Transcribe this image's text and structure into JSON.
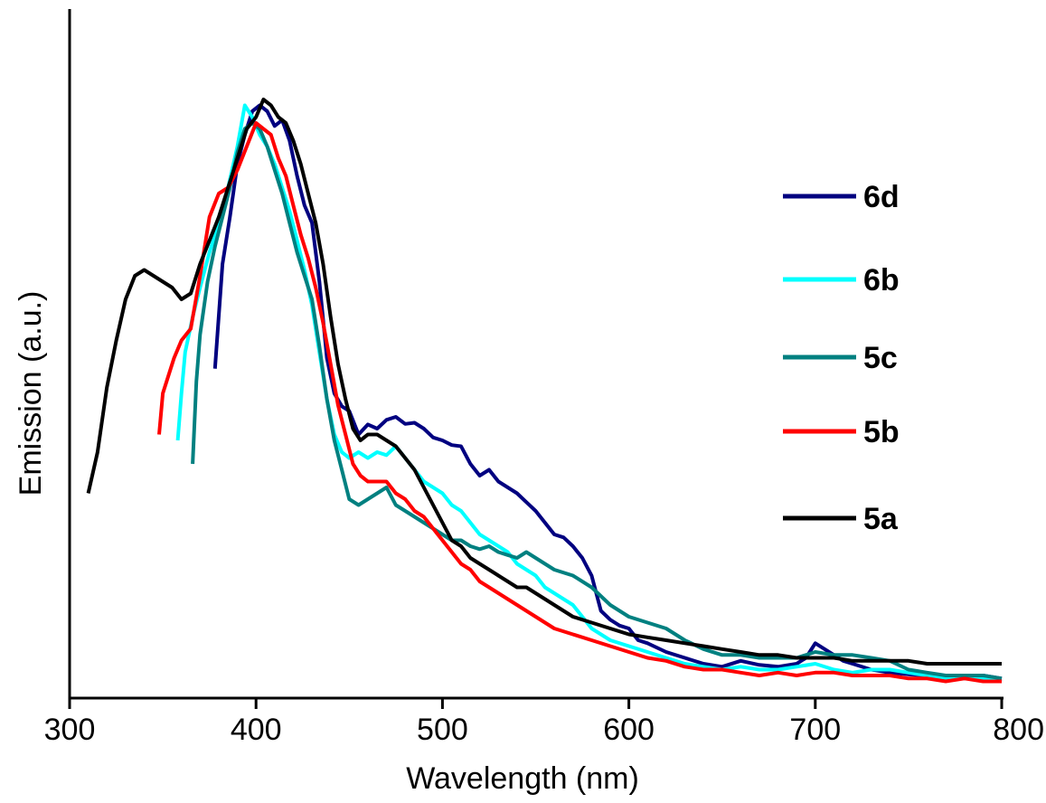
{
  "chart_data": {
    "type": "line",
    "title": "",
    "xlabel": "Wavelength (nm)",
    "ylabel": "Emission (a.u.)",
    "xlim": [
      300,
      800
    ],
    "ylim": [
      0,
      1
    ],
    "xticks": [
      "300",
      "400",
      "500",
      "600",
      "700",
      "800"
    ],
    "grid": false,
    "legend_position": "right",
    "series": [
      {
        "name": "6d",
        "color": "#000080",
        "x": [
          378,
          382,
          386,
          390,
          394,
          398,
          402,
          406,
          410,
          414,
          418,
          422,
          426,
          430,
          434,
          438,
          442,
          446,
          450,
          455,
          460,
          465,
          470,
          475,
          480,
          485,
          490,
          495,
          500,
          505,
          510,
          515,
          520,
          525,
          530,
          535,
          540,
          545,
          550,
          555,
          560,
          565,
          570,
          575,
          580,
          585,
          590,
          595,
          600,
          605,
          610,
          620,
          630,
          640,
          650,
          660,
          670,
          680,
          690,
          695,
          700,
          705,
          710,
          715,
          720,
          730,
          740,
          750,
          760,
          770,
          780,
          790,
          800
        ],
        "y": [
          0.542,
          0.72,
          0.8,
          0.89,
          0.94,
          0.98,
          0.99,
          0.98,
          0.955,
          0.965,
          0.93,
          0.87,
          0.82,
          0.79,
          0.69,
          0.56,
          0.5,
          0.478,
          0.47,
          0.43,
          0.447,
          0.44,
          0.455,
          0.46,
          0.448,
          0.45,
          0.44,
          0.425,
          0.42,
          0.412,
          0.41,
          0.38,
          0.36,
          0.37,
          0.35,
          0.34,
          0.33,
          0.315,
          0.3,
          0.28,
          0.26,
          0.255,
          0.24,
          0.22,
          0.19,
          0.13,
          0.115,
          0.105,
          0.1,
          0.08,
          0.075,
          0.06,
          0.05,
          0.04,
          0.035,
          0.045,
          0.038,
          0.035,
          0.04,
          0.05,
          0.075,
          0.065,
          0.055,
          0.045,
          0.04,
          0.03,
          0.025,
          0.022,
          0.02,
          0.02,
          0.015,
          0.02,
          0.015
        ]
      },
      {
        "name": "6b",
        "color": "#00ffff",
        "x": [
          358,
          360,
          362,
          366,
          370,
          375,
          380,
          385,
          390,
          394,
          398,
          402,
          406,
          410,
          414,
          418,
          422,
          426,
          430,
          434,
          438,
          442,
          446,
          450,
          455,
          460,
          465,
          470,
          475,
          480,
          485,
          490,
          495,
          500,
          505,
          510,
          515,
          520,
          525,
          530,
          535,
          540,
          545,
          550,
          555,
          560,
          565,
          570,
          575,
          580,
          590,
          600,
          610,
          620,
          630,
          640,
          650,
          660,
          670,
          680,
          690,
          700,
          710,
          720,
          730,
          740,
          750,
          760,
          770,
          780,
          790,
          800
        ],
        "y": [
          0.42,
          0.5,
          0.57,
          0.63,
          0.68,
          0.74,
          0.79,
          0.85,
          0.92,
          0.99,
          0.97,
          0.94,
          0.92,
          0.89,
          0.85,
          0.81,
          0.76,
          0.71,
          0.65,
          0.57,
          0.49,
          0.43,
          0.4,
          0.39,
          0.4,
          0.39,
          0.4,
          0.395,
          0.41,
          0.39,
          0.37,
          0.35,
          0.34,
          0.33,
          0.31,
          0.3,
          0.28,
          0.26,
          0.25,
          0.24,
          0.23,
          0.21,
          0.2,
          0.19,
          0.17,
          0.16,
          0.15,
          0.14,
          0.12,
          0.1,
          0.08,
          0.07,
          0.06,
          0.05,
          0.04,
          0.035,
          0.03,
          0.035,
          0.03,
          0.03,
          0.035,
          0.04,
          0.03,
          0.025,
          0.03,
          0.03,
          0.025,
          0.02,
          0.015,
          0.02,
          0.015,
          0.01
        ]
      },
      {
        "name": "5c",
        "color": "#008080",
        "x": [
          366,
          368,
          370,
          374,
          378,
          382,
          386,
          390,
          394,
          398,
          402,
          406,
          410,
          414,
          418,
          422,
          426,
          430,
          434,
          438,
          442,
          446,
          450,
          455,
          460,
          465,
          470,
          475,
          480,
          485,
          490,
          495,
          500,
          505,
          510,
          515,
          520,
          525,
          530,
          535,
          540,
          545,
          550,
          555,
          560,
          570,
          580,
          590,
          600,
          610,
          620,
          630,
          640,
          650,
          660,
          670,
          680,
          690,
          700,
          710,
          720,
          730,
          740,
          750,
          760,
          770,
          780,
          790,
          800
        ],
        "y": [
          0.38,
          0.52,
          0.6,
          0.69,
          0.75,
          0.8,
          0.85,
          0.91,
          0.95,
          0.96,
          0.95,
          0.92,
          0.88,
          0.84,
          0.79,
          0.74,
          0.7,
          0.66,
          0.58,
          0.49,
          0.42,
          0.37,
          0.32,
          0.31,
          0.32,
          0.33,
          0.34,
          0.31,
          0.3,
          0.29,
          0.28,
          0.27,
          0.26,
          0.25,
          0.25,
          0.24,
          0.235,
          0.24,
          0.23,
          0.225,
          0.22,
          0.23,
          0.22,
          0.21,
          0.2,
          0.19,
          0.17,
          0.14,
          0.12,
          0.11,
          0.1,
          0.08,
          0.065,
          0.055,
          0.055,
          0.05,
          0.05,
          0.05,
          0.06,
          0.055,
          0.055,
          0.05,
          0.045,
          0.03,
          0.025,
          0.02,
          0.02,
          0.02,
          0.015
        ]
      },
      {
        "name": "5b",
        "color": "#ff0000",
        "x": [
          348,
          350,
          353,
          356,
          360,
          365,
          370,
          375,
          380,
          385,
          390,
          395,
          400,
          404,
          408,
          412,
          416,
          420,
          424,
          428,
          432,
          436,
          440,
          444,
          448,
          452,
          456,
          460,
          465,
          470,
          475,
          480,
          485,
          490,
          495,
          500,
          505,
          510,
          515,
          520,
          525,
          530,
          535,
          540,
          545,
          550,
          555,
          560,
          570,
          580,
          590,
          600,
          610,
          620,
          630,
          640,
          650,
          660,
          670,
          680,
          690,
          700,
          710,
          720,
          730,
          740,
          750,
          760,
          770,
          780,
          790,
          800
        ],
        "y": [
          0.43,
          0.5,
          0.53,
          0.56,
          0.59,
          0.61,
          0.7,
          0.8,
          0.84,
          0.85,
          0.88,
          0.92,
          0.96,
          0.95,
          0.94,
          0.9,
          0.87,
          0.82,
          0.77,
          0.73,
          0.68,
          0.62,
          0.55,
          0.48,
          0.43,
          0.38,
          0.36,
          0.35,
          0.35,
          0.35,
          0.33,
          0.32,
          0.3,
          0.29,
          0.27,
          0.25,
          0.23,
          0.21,
          0.2,
          0.18,
          0.17,
          0.16,
          0.15,
          0.14,
          0.13,
          0.12,
          0.11,
          0.1,
          0.09,
          0.08,
          0.07,
          0.06,
          0.05,
          0.045,
          0.035,
          0.03,
          0.03,
          0.025,
          0.02,
          0.025,
          0.02,
          0.025,
          0.025,
          0.02,
          0.02,
          0.02,
          0.015,
          0.015,
          0.01,
          0.015,
          0.01,
          0.01
        ]
      },
      {
        "name": "5a",
        "color": "#000000",
        "x": [
          310,
          315,
          320,
          325,
          330,
          335,
          340,
          345,
          350,
          355,
          360,
          365,
          370,
          375,
          380,
          385,
          390,
          395,
          400,
          404,
          408,
          412,
          416,
          420,
          424,
          428,
          432,
          436,
          440,
          444,
          448,
          452,
          456,
          460,
          465,
          470,
          475,
          480,
          485,
          490,
          495,
          500,
          505,
          510,
          515,
          520,
          525,
          530,
          535,
          540,
          545,
          550,
          560,
          570,
          580,
          590,
          600,
          610,
          620,
          630,
          640,
          650,
          660,
          670,
          680,
          690,
          700,
          710,
          720,
          730,
          740,
          750,
          760,
          770,
          780,
          790,
          800
        ],
        "y": [
          0.33,
          0.4,
          0.51,
          0.59,
          0.66,
          0.7,
          0.71,
          0.7,
          0.69,
          0.68,
          0.66,
          0.67,
          0.72,
          0.76,
          0.8,
          0.85,
          0.9,
          0.95,
          0.97,
          1.0,
          0.99,
          0.97,
          0.96,
          0.93,
          0.89,
          0.84,
          0.79,
          0.72,
          0.63,
          0.55,
          0.49,
          0.44,
          0.42,
          0.43,
          0.43,
          0.42,
          0.41,
          0.39,
          0.37,
          0.34,
          0.31,
          0.28,
          0.25,
          0.24,
          0.22,
          0.21,
          0.2,
          0.19,
          0.18,
          0.17,
          0.17,
          0.16,
          0.14,
          0.12,
          0.11,
          0.1,
          0.09,
          0.085,
          0.08,
          0.075,
          0.07,
          0.065,
          0.06,
          0.055,
          0.055,
          0.05,
          0.05,
          0.05,
          0.045,
          0.045,
          0.045,
          0.045,
          0.04,
          0.04,
          0.04,
          0.04,
          0.04
        ]
      }
    ],
    "legend_order": [
      "6d",
      "6b",
      "5c",
      "5b",
      "5a"
    ]
  }
}
